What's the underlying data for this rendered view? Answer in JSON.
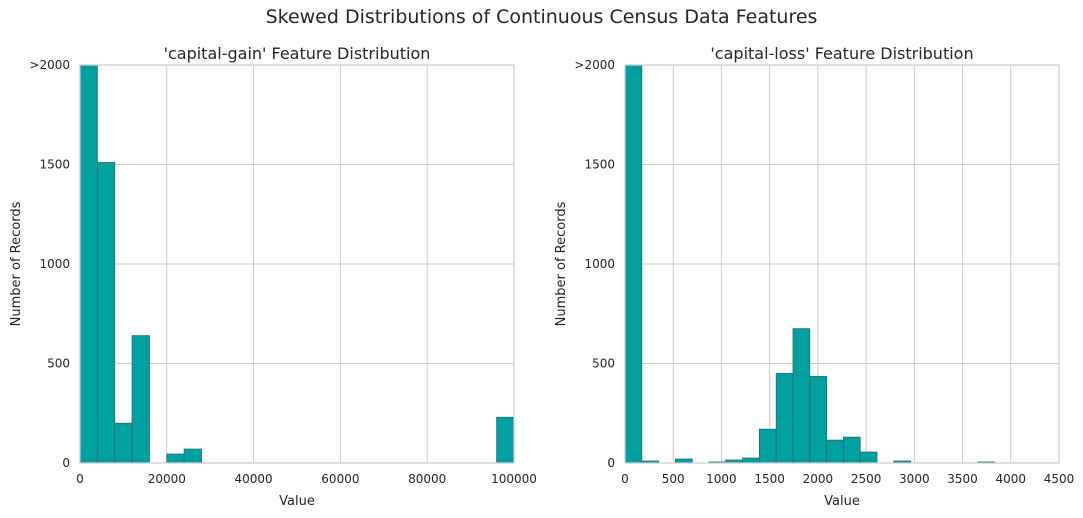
{
  "suptitle": "Skewed Distributions of Continuous Census Data Features",
  "chart_data": [
    {
      "type": "bar",
      "title": "'capital-gain' Feature Distribution",
      "xlabel": "Value",
      "ylabel": "Number of Records",
      "xlim": [
        0,
        100000
      ],
      "ylim": [
        0,
        2000
      ],
      "xticks": [
        0,
        20000,
        40000,
        60000,
        80000,
        100000
      ],
      "xtick_labels": [
        "0",
        "20000",
        "40000",
        "60000",
        "80000",
        "100000"
      ],
      "yticks": [
        0,
        500,
        1000,
        1500,
        2000
      ],
      "ytick_labels": [
        "0",
        "500",
        "1000",
        "1500",
        ">2000"
      ],
      "grid": true,
      "bin_width": 4000,
      "bins_start": [
        0,
        4000,
        8000,
        12000,
        16000,
        20000,
        24000,
        28000,
        32000,
        36000,
        40000,
        44000,
        48000,
        52000,
        56000,
        60000,
        64000,
        68000,
        72000,
        76000,
        80000,
        84000,
        88000,
        92000,
        96000
      ],
      "values": [
        2000,
        1510,
        200,
        640,
        0,
        45,
        70,
        0,
        0,
        0,
        0,
        0,
        0,
        0,
        0,
        0,
        0,
        0,
        0,
        0,
        0,
        0,
        0,
        0,
        230
      ],
      "color": "#00a0a0"
    },
    {
      "type": "bar",
      "title": "'capital-loss' Feature Distribution",
      "xlabel": "Value",
      "ylabel": "Number of Records",
      "xlim": [
        0,
        4500
      ],
      "ylim": [
        0,
        2000
      ],
      "xticks": [
        0,
        500,
        1000,
        1500,
        2000,
        2500,
        3000,
        3500,
        4000,
        4500
      ],
      "xtick_labels": [
        "0",
        "500",
        "1000",
        "1500",
        "2000",
        "2500",
        "3000",
        "3500",
        "4000",
        "4500"
      ],
      "yticks": [
        0,
        500,
        1000,
        1500,
        2000
      ],
      "ytick_labels": [
        "0",
        "500",
        "1000",
        "1500",
        ">2000"
      ],
      "grid": true,
      "bin_width": 174.2,
      "bins_start": [
        0,
        174.2,
        348.4,
        522.6,
        696.8,
        871,
        1045.2,
        1219.4,
        1393.6,
        1567.8,
        1742,
        1916.2,
        2090.4,
        2264.6,
        2438.8,
        2613,
        2787.2,
        2961.4,
        3135.6,
        3309.8,
        3484,
        3658.2,
        3832.4,
        4006.6,
        4180.8
      ],
      "values": [
        2000,
        10,
        0,
        20,
        0,
        5,
        15,
        25,
        170,
        450,
        675,
        435,
        115,
        130,
        55,
        0,
        10,
        0,
        0,
        0,
        0,
        5,
        0,
        0,
        0
      ],
      "color": "#00a0a0"
    }
  ]
}
